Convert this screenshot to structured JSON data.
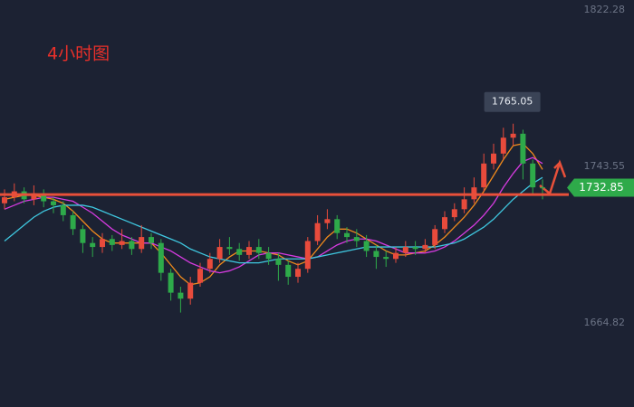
{
  "chart_data": {
    "type": "candlestick",
    "title": "4小时图",
    "open": [
      1725,
      1728,
      1731,
      1727,
      1730,
      1726,
      1724,
      1719,
      1712,
      1705,
      1703,
      1707,
      1704,
      1706,
      1702,
      1708,
      1705,
      1690,
      1680,
      1677,
      1685,
      1692,
      1697,
      1703,
      1702,
      1699,
      1703,
      1700,
      1697,
      1694,
      1688,
      1692,
      1706,
      1715,
      1717,
      1710,
      1708,
      1706,
      1701,
      1698,
      1697,
      1700,
      1703,
      1702,
      1704,
      1712,
      1718,
      1722,
      1727,
      1733,
      1745,
      1750,
      1758,
      1760,
      1745,
      1733
    ],
    "high": [
      1732,
      1735,
      1733,
      1734,
      1732,
      1728,
      1726,
      1721,
      1714,
      1708,
      1710,
      1709,
      1712,
      1708,
      1714,
      1710,
      1707,
      1692,
      1683,
      1688,
      1695,
      1700,
      1707,
      1708,
      1705,
      1706,
      1707,
      1703,
      1700,
      1696,
      1695,
      1708,
      1719,
      1722,
      1719,
      1713,
      1712,
      1709,
      1704,
      1701,
      1703,
      1706,
      1706,
      1707,
      1714,
      1721,
      1725,
      1733,
      1738,
      1750,
      1755,
      1763,
      1765.05,
      1762,
      1747,
      1737
    ],
    "low": [
      1722,
      1726,
      1725,
      1724,
      1723,
      1720,
      1716,
      1709,
      1700,
      1698,
      1700,
      1701,
      1702,
      1699,
      1700,
      1702,
      1686,
      1676,
      1670,
      1674,
      1683,
      1690,
      1695,
      1699,
      1696,
      1697,
      1697,
      1694,
      1686,
      1684,
      1685,
      1690,
      1704,
      1712,
      1707,
      1705,
      1703,
      1698,
      1692,
      1693,
      1695,
      1698,
      1699,
      1700,
      1702,
      1710,
      1716,
      1720,
      1725,
      1731,
      1742,
      1747,
      1754,
      1737,
      1729,
      1727
    ],
    "close": [
      1728,
      1731,
      1727,
      1730,
      1726,
      1724,
      1719,
      1712,
      1705,
      1703,
      1707,
      1704,
      1706,
      1702,
      1708,
      1705,
      1690,
      1680,
      1677,
      1685,
      1692,
      1697,
      1703,
      1702,
      1699,
      1703,
      1700,
      1697,
      1694,
      1688,
      1692,
      1706,
      1715,
      1717,
      1710,
      1708,
      1706,
      1701,
      1698,
      1697,
      1700,
      1703,
      1702,
      1704,
      1712,
      1718,
      1722,
      1727,
      1733,
      1745,
      1750,
      1758,
      1760,
      1745,
      1733,
      1732.85
    ],
    "up_color": "#e84b3c",
    "down_color": "#2eaa4a",
    "lines": [
      {
        "color": "#f08a1c",
        "values": [
          1727,
          1728,
          1729,
          1729,
          1728,
          1727,
          1725,
          1721,
          1716,
          1711,
          1707,
          1705,
          1705,
          1705,
          1705,
          1705,
          1700,
          1694,
          1688,
          1684,
          1685,
          1688,
          1694,
          1698,
          1701,
          1701,
          1701,
          1700,
          1699,
          1696,
          1694,
          1696,
          1702,
          1708,
          1712,
          1712,
          1710,
          1707,
          1704,
          1701,
          1699,
          1699,
          1700,
          1701,
          1704,
          1708,
          1713,
          1718,
          1724,
          1731,
          1739,
          1747,
          1754,
          1755,
          1750,
          1742
        ]
      },
      {
        "color": "#d63be0",
        "values": [
          1722,
          1724,
          1726,
          1727,
          1728,
          1728,
          1727,
          1726,
          1723,
          1720,
          1716,
          1712,
          1709,
          1707,
          1705,
          1705,
          1703,
          1701,
          1698,
          1695,
          1693,
          1691,
          1690,
          1691,
          1693,
          1696,
          1699,
          1700,
          1700,
          1699,
          1698,
          1697,
          1698,
          1701,
          1704,
          1706,
          1707,
          1707,
          1706,
          1704,
          1702,
          1700,
          1700,
          1700,
          1701,
          1703,
          1706,
          1710,
          1714,
          1719,
          1725,
          1733,
          1740,
          1746,
          1748,
          1745
        ]
      },
      {
        "color": "#3fc8e0",
        "values": [
          1706,
          1710,
          1714,
          1718,
          1721,
          1723,
          1724,
          1724,
          1724,
          1723,
          1721,
          1719,
          1717,
          1715,
          1713,
          1711,
          1709,
          1707,
          1705,
          1702,
          1700,
          1698,
          1697,
          1696,
          1695,
          1695,
          1695,
          1696,
          1697,
          1697,
          1697,
          1697,
          1698,
          1699,
          1700,
          1701,
          1702,
          1703,
          1703,
          1703,
          1703,
          1703,
          1703,
          1703,
          1703,
          1704,
          1705,
          1707,
          1710,
          1713,
          1717,
          1722,
          1727,
          1731,
          1735,
          1738
        ]
      }
    ],
    "hline": {
      "value": 1729.4,
      "color": "#e8503a"
    },
    "ylim": [
      1622.48,
      1827.28
    ],
    "yticks": [
      1664.82,
      1743.55,
      1822.28
    ]
  }
}
